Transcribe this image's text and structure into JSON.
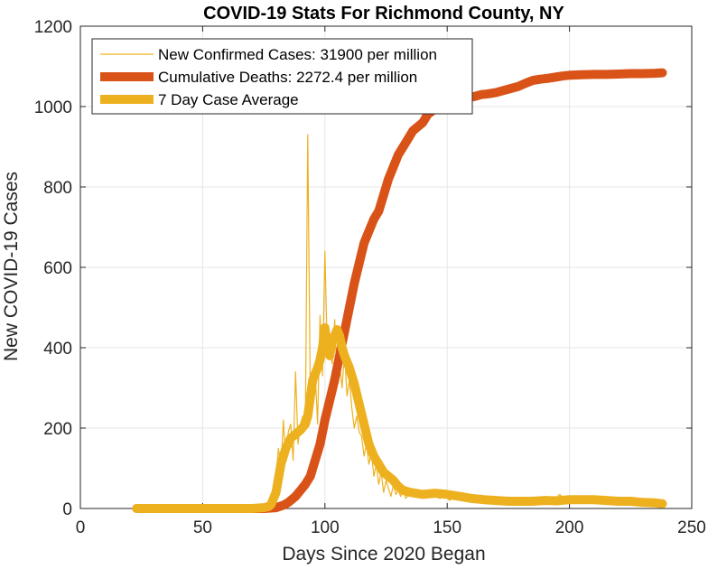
{
  "chart_data": {
    "type": "line",
    "title": "COVID-19 Stats For Richmond County, NY",
    "xlabel": "Days Since 2020 Began",
    "ylabel": "New COVID-19 Cases",
    "xlim": [
      0,
      250
    ],
    "ylim": [
      0,
      1200
    ],
    "xticks": [
      0,
      50,
      100,
      150,
      200,
      250
    ],
    "yticks": [
      0,
      200,
      400,
      600,
      800,
      1000,
      1200
    ],
    "grid": true,
    "legend_position": "top-left",
    "series": [
      {
        "name": "New Confirmed Cases: 31900 per million",
        "color": "#EDB120",
        "style": "thin",
        "x": [
          23,
          30,
          40,
          50,
          60,
          70,
          75,
          77,
          78,
          79,
          80,
          81,
          82,
          83,
          84,
          85,
          86,
          87,
          88,
          89,
          90,
          91,
          92,
          93,
          94,
          95,
          96,
          97,
          98,
          99,
          100,
          101,
          102,
          103,
          104,
          105,
          106,
          107,
          108,
          109,
          110,
          111,
          112,
          113,
          114,
          115,
          116,
          117,
          118,
          119,
          120,
          121,
          122,
          123,
          124,
          125,
          126,
          127,
          128,
          129,
          130,
          131,
          132,
          133,
          135,
          137,
          139,
          141,
          143,
          145,
          147,
          149,
          151,
          153,
          155,
          157,
          160,
          163,
          166,
          169,
          172,
          175,
          178,
          181,
          184,
          187,
          190,
          193,
          196,
          199,
          202,
          205,
          208,
          211,
          214,
          217,
          220,
          223,
          226,
          229,
          232,
          235,
          238
        ],
        "y": [
          0,
          0,
          0,
          0,
          0,
          0,
          0,
          2,
          10,
          30,
          80,
          150,
          100,
          220,
          120,
          190,
          210,
          120,
          340,
          160,
          210,
          230,
          200,
          930,
          280,
          330,
          340,
          210,
          480,
          330,
          640,
          380,
          400,
          360,
          470,
          330,
          360,
          300,
          390,
          280,
          320,
          250,
          200,
          230,
          190,
          180,
          130,
          160,
          110,
          140,
          80,
          110,
          60,
          90,
          40,
          70,
          50,
          30,
          60,
          35,
          45,
          30,
          55,
          25,
          40,
          30,
          35,
          28,
          40,
          30,
          25,
          35,
          20,
          30,
          25,
          28,
          20,
          18,
          22,
          15,
          20,
          25,
          12,
          28,
          15,
          22,
          30,
          18,
          35,
          20,
          25,
          30,
          22,
          28,
          20,
          18,
          25,
          20,
          15,
          22,
          18,
          10,
          15
        ]
      },
      {
        "name": "Cumulative Deaths: 2272.4 per million",
        "color": "#D95319",
        "style": "thick",
        "x": [
          23,
          40,
          60,
          75,
          80,
          83,
          85,
          88,
          90,
          92,
          94,
          96,
          98,
          100,
          102,
          104,
          106,
          108,
          110,
          112,
          114,
          116,
          118,
          120,
          122,
          124,
          126,
          128,
          130,
          132,
          134,
          136,
          138,
          140,
          142,
          144,
          146,
          148,
          150,
          152,
          155,
          158,
          161,
          164,
          167,
          170,
          173,
          176,
          179,
          182,
          185,
          188,
          191,
          194,
          197,
          200,
          205,
          210,
          215,
          220,
          225,
          230,
          235,
          238
        ],
        "y": [
          0,
          0,
          0,
          0,
          2,
          8,
          15,
          30,
          45,
          60,
          80,
          120,
          160,
          220,
          270,
          320,
          380,
          440,
          500,
          560,
          610,
          660,
          690,
          720,
          740,
          780,
          820,
          850,
          880,
          900,
          920,
          940,
          950,
          960,
          980,
          990,
          1000,
          1010,
          1015,
          1018,
          1020,
          1022,
          1025,
          1030,
          1032,
          1035,
          1040,
          1045,
          1050,
          1058,
          1065,
          1068,
          1070,
          1073,
          1076,
          1078,
          1079,
          1080,
          1080,
          1081,
          1082,
          1082,
          1083,
          1084
        ]
      },
      {
        "name": "7 Day Case Average",
        "color": "#EDB120",
        "style": "thick",
        "x": [
          23,
          40,
          60,
          70,
          75,
          77,
          78,
          80,
          82,
          84,
          86,
          88,
          90,
          92,
          93,
          95,
          97,
          98,
          99,
          100,
          101,
          102,
          103,
          104,
          105,
          106,
          107,
          108,
          110,
          112,
          114,
          116,
          118,
          120,
          122,
          124,
          126,
          128,
          130,
          132,
          135,
          140,
          145,
          150,
          155,
          160,
          165,
          170,
          175,
          180,
          185,
          190,
          195,
          200,
          205,
          210,
          215,
          220,
          225,
          230,
          235,
          238
        ],
        "y": [
          0,
          0,
          0,
          0,
          2,
          5,
          10,
          40,
          110,
          150,
          175,
          185,
          195,
          210,
          230,
          320,
          350,
          370,
          400,
          450,
          400,
          380,
          420,
          430,
          445,
          430,
          400,
          380,
          350,
          310,
          260,
          210,
          160,
          130,
          110,
          90,
          80,
          70,
          55,
          45,
          40,
          35,
          38,
          35,
          30,
          25,
          22,
          20,
          18,
          18,
          18,
          20,
          19,
          22,
          22,
          22,
          20,
          18,
          18,
          15,
          14,
          12
        ]
      }
    ]
  }
}
